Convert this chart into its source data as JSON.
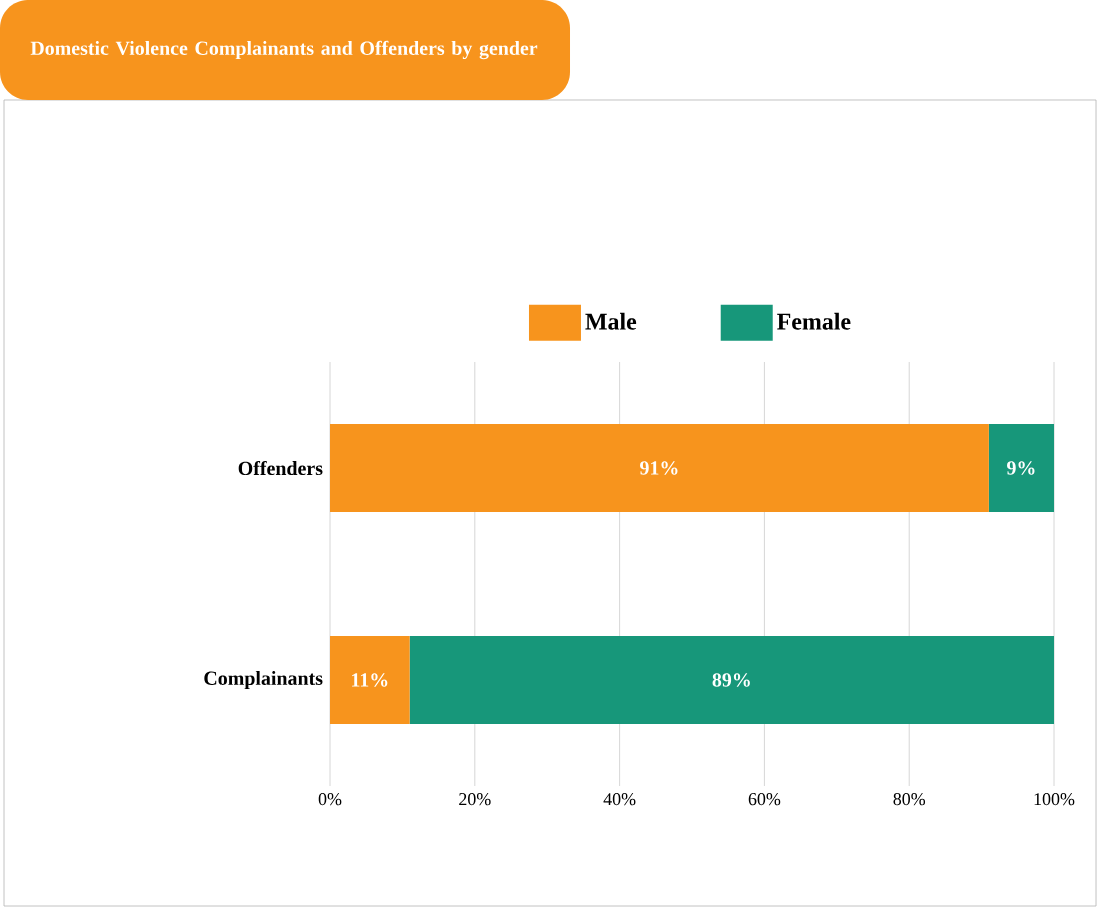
{
  "chart_data": {
    "type": "bar",
    "orientation": "horizontal",
    "stacked": true,
    "title": "Domestic Violence Complainants and Offenders by gender",
    "categories": [
      "Offenders",
      "Complainants"
    ],
    "series": [
      {
        "name": "Male",
        "color": "#f7941d",
        "values": [
          91,
          11
        ],
        "value_labels": [
          "91%",
          "11%"
        ]
      },
      {
        "name": "Female",
        "color": "#17977a",
        "values": [
          9,
          89
        ],
        "value_labels": [
          "9%",
          "89%"
        ]
      }
    ],
    "xlim": [
      0,
      100
    ],
    "xticks": [
      {
        "value": 0,
        "label": "0%"
      },
      {
        "value": 20,
        "label": "20%"
      },
      {
        "value": 40,
        "label": "40%"
      },
      {
        "value": 60,
        "label": "60%"
      },
      {
        "value": 80,
        "label": "80%"
      },
      {
        "value": 100,
        "label": "100%"
      }
    ],
    "grid": "x",
    "legend": "top"
  }
}
